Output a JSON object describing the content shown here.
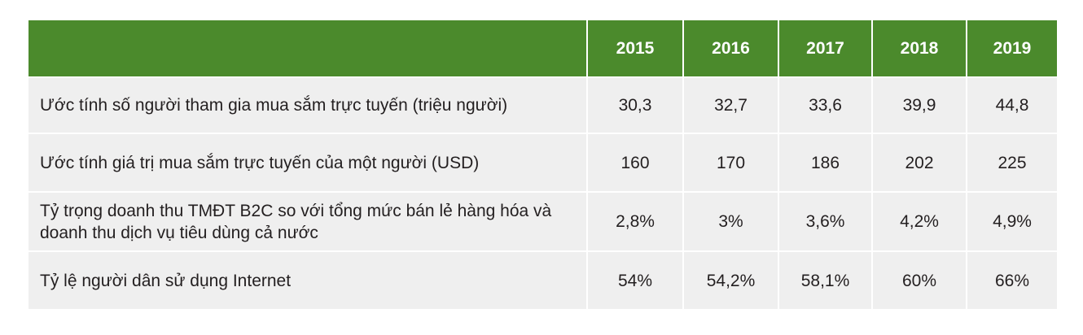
{
  "table": {
    "columns": [
      "2015",
      "2016",
      "2017",
      "2018",
      "2019"
    ],
    "rows": [
      {
        "label": "Ước tính số người tham gia mua sắm trực tuyến (triệu người)",
        "cells": [
          "30,3",
          "32,7",
          "33,6",
          "39,9",
          "44,8"
        ]
      },
      {
        "label": "Ước tính giá trị mua sắm trực tuyến của một người (USD)",
        "cells": [
          "160",
          "170",
          "186",
          "202",
          "225"
        ]
      },
      {
        "label": "Tỷ trọng doanh thu TMĐT B2C so với tổng mức bán lẻ hàng hóa và doanh thu dịch vụ tiêu dùng cả nước",
        "cells": [
          "2,8%",
          "3%",
          "3,6%",
          "4,2%",
          "4,9%"
        ]
      },
      {
        "label": "Tỷ lệ người dân sử dụng Internet",
        "cells": [
          "54%",
          "54,2%",
          "58,1%",
          "60%",
          "66%"
        ]
      }
    ]
  }
}
